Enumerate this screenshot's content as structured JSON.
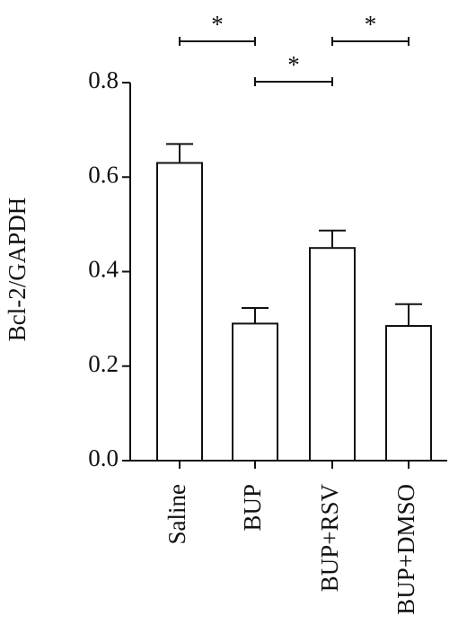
{
  "chart_data": {
    "type": "bar",
    "y_label": "Bcl-2/GAPDH",
    "categories": [
      "Saline",
      "BUP",
      "BUP+RSV",
      "BUP+DMSO"
    ],
    "values": [
      0.63,
      0.29,
      0.45,
      0.285
    ],
    "errors": [
      0.04,
      0.033,
      0.037,
      0.046
    ],
    "color": "#ffffff",
    "ylim": [
      0,
      0.8
    ],
    "yticks": [
      {
        "value": 0,
        "label": "0.0"
      },
      0.2,
      0.4,
      0.6,
      0.8
    ],
    "annotations": [
      {
        "text": "*",
        "between": [
          "Saline",
          "BUP"
        ]
      },
      {
        "text": "*",
        "between": [
          "BUP",
          "BUP+RSV"
        ]
      },
      {
        "text": "*",
        "between": [
          "BUP+RSV",
          "BUP+DMSO"
        ]
      }
    ]
  }
}
